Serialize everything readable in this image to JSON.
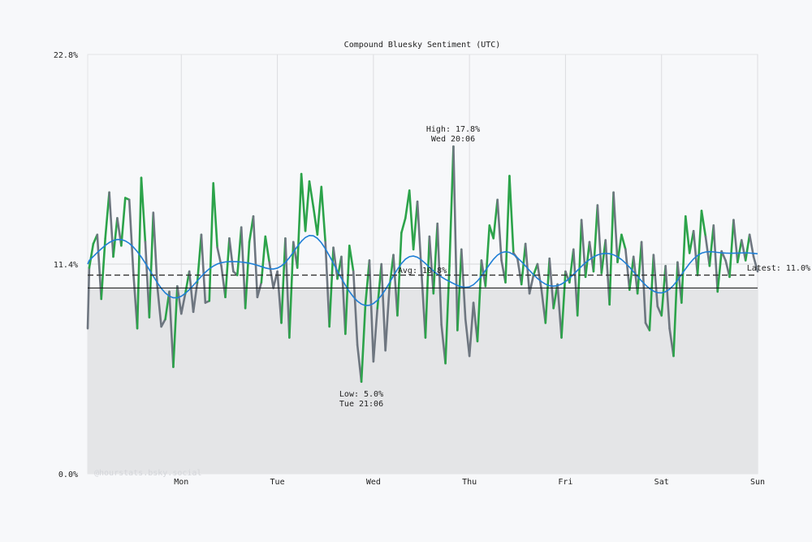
{
  "chart_data": {
    "type": "line",
    "title": "Compound Bluesky Sentiment (UTC)",
    "ylim": [
      0,
      22.8
    ],
    "y_ticks": [
      "0.0%",
      "11.4%",
      "22.8%"
    ],
    "y_tick_values": [
      0,
      11.4,
      22.8
    ],
    "x_ticks": [
      "Mon",
      "Tue",
      "Wed",
      "Thu",
      "Fri",
      "Sat",
      "Sun"
    ],
    "x_tick_hours": [
      24,
      48,
      72,
      96,
      120,
      144,
      168
    ],
    "x_start": "Sun 00:00",
    "x_step": "1 hour",
    "grid": true,
    "baseline": 10.1,
    "average": 10.8,
    "colors": {
      "above": "#2ca34a",
      "below": "#6e7680",
      "trend": "#1f7fd6",
      "fill": "#e4e5e7",
      "background": "#f7f8fa"
    },
    "values": [
      7.9,
      11.2,
      12.5,
      13.0,
      9.5,
      12.8,
      15.3,
      11.8,
      13.9,
      12.4,
      15.0,
      14.9,
      11.0,
      7.9,
      16.1,
      12.6,
      8.5,
      14.2,
      10.2,
      8.0,
      8.4,
      9.9,
      5.8,
      10.2,
      8.7,
      9.8,
      11.0,
      8.8,
      10.4,
      13.0,
      9.3,
      9.4,
      15.8,
      12.3,
      11.3,
      9.6,
      12.8,
      11.0,
      10.8,
      13.4,
      9.0,
      12.6,
      14.0,
      9.6,
      10.4,
      12.9,
      11.5,
      10.1,
      11.0,
      8.2,
      12.8,
      7.4,
      12.6,
      11.2,
      16.3,
      13.2,
      15.9,
      14.5,
      13.0,
      15.6,
      12.6,
      8.0,
      12.3,
      10.6,
      11.8,
      7.6,
      12.4,
      11.0,
      7.0,
      5.0,
      9.2,
      11.6,
      6.1,
      9.0,
      11.4,
      6.7,
      10.1,
      11.9,
      8.6,
      13.1,
      13.9,
      15.4,
      12.2,
      14.8,
      11.0,
      7.4,
      12.9,
      9.8,
      13.6,
      8.1,
      6.0,
      11.3,
      17.8,
      7.8,
      12.2,
      8.4,
      6.4,
      9.3,
      7.2,
      11.6,
      10.2,
      13.5,
      12.8,
      14.9,
      11.6,
      10.4,
      16.2,
      12.0,
      11.7,
      10.3,
      12.5,
      9.8,
      10.8,
      11.4,
      10.0,
      8.2,
      11.7,
      9.0,
      10.3,
      7.4,
      11.0,
      10.4,
      12.2,
      8.6,
      13.8,
      10.7,
      12.6,
      11.0,
      14.6,
      10.9,
      12.7,
      9.2,
      15.3,
      11.5,
      13.0,
      12.2,
      10.0,
      11.8,
      9.8,
      12.6,
      8.2,
      7.8,
      11.9,
      9.1,
      8.6,
      11.3,
      7.9,
      6.4,
      11.5,
      9.3,
      14.0,
      12.0,
      13.2,
      10.8,
      14.3,
      12.9,
      11.3,
      13.5,
      9.9,
      12.1,
      11.6,
      10.7,
      13.8,
      11.5,
      12.7,
      11.6,
      13.0,
      11.8,
      11.0
    ],
    "annotations": {
      "high": [
        "High: 17.8%",
        "Wed 20:06"
      ],
      "low": [
        "Low: 5.0%",
        "Tue 21:06"
      ],
      "avg": "Avg: 10.8%",
      "latest": "Latest: 11.0%"
    },
    "watermark": "@hourstats.bsky.social"
  }
}
